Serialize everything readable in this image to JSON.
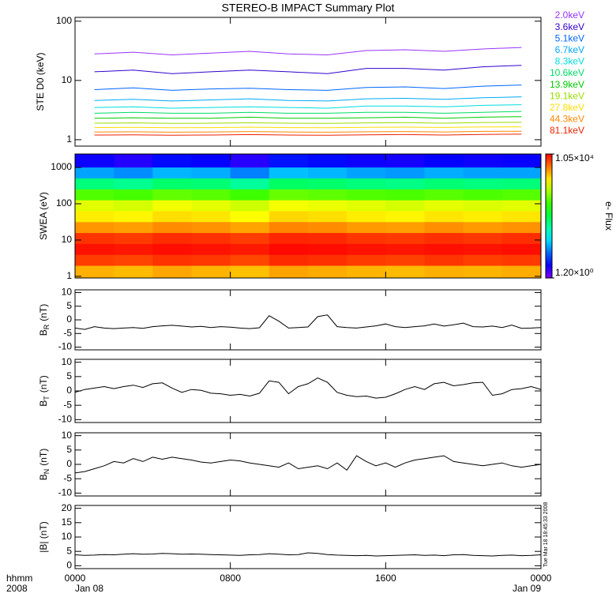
{
  "chart_data": [
    {
      "type": "line",
      "title": "STEREO-B IMPACT Summary Plot",
      "ylabel": "STE D0 (keV)",
      "log": true,
      "xlim": [
        0,
        24
      ],
      "xticks": [
        0,
        8,
        16,
        24
      ],
      "ylim": [
        0.78,
        116
      ],
      "yticks": [
        1,
        10,
        100
      ],
      "x": [
        1,
        3,
        5,
        7,
        9,
        11,
        13,
        15,
        17,
        19,
        21,
        23
      ],
      "series": [
        {
          "name": "2.0keV",
          "color": "#9933ff",
          "values": [
            28,
            30,
            27,
            29,
            31,
            28,
            27,
            32,
            33,
            31,
            34,
            36
          ]
        },
        {
          "name": "3.6keV",
          "color": "#3300cc",
          "values": [
            14,
            15,
            13,
            14,
            15,
            14,
            13,
            16,
            16,
            15,
            17,
            18
          ]
        },
        {
          "name": "5.1keV",
          "color": "#0066ff",
          "values": [
            7,
            7.5,
            6.8,
            7.2,
            7.4,
            7,
            6.8,
            7.6,
            7.8,
            7.3,
            8,
            8.4
          ]
        },
        {
          "name": "6.7keV",
          "color": "#00aaff",
          "values": [
            4.6,
            4.8,
            4.5,
            4.7,
            4.9,
            4.6,
            4.5,
            4.9,
            5,
            4.8,
            5.1,
            5.3
          ]
        },
        {
          "name": "8.3keV",
          "color": "#00dddd",
          "values": [
            3.5,
            3.6,
            3.4,
            3.5,
            3.6,
            3.5,
            3.4,
            3.7,
            3.7,
            3.6,
            3.8,
            3.9
          ]
        },
        {
          "name": "10.6keV",
          "color": "#00dd66",
          "values": [
            2.8,
            2.9,
            2.8,
            2.8,
            2.9,
            2.8,
            2.8,
            2.9,
            2.9,
            2.8,
            2.9,
            3
          ]
        },
        {
          "name": "13.9keV",
          "color": "#00cc00",
          "values": [
            2.3,
            2.35,
            2.3,
            2.3,
            2.4,
            2.3,
            2.3,
            2.35,
            2.4,
            2.3,
            2.4,
            2.45
          ]
        },
        {
          "name": "19.1keV",
          "color": "#99dd00",
          "values": [
            1.9,
            1.92,
            1.88,
            1.9,
            1.93,
            1.9,
            1.88,
            1.92,
            1.94,
            1.9,
            1.95,
            1.97
          ]
        },
        {
          "name": "27.8keV",
          "color": "#ffdd00",
          "values": [
            1.6,
            1.62,
            1.59,
            1.6,
            1.63,
            1.6,
            1.59,
            1.62,
            1.63,
            1.61,
            1.64,
            1.65
          ]
        },
        {
          "name": "44.3keV",
          "color": "#ff8800",
          "values": [
            1.35,
            1.36,
            1.34,
            1.35,
            1.37,
            1.35,
            1.34,
            1.36,
            1.37,
            1.35,
            1.38,
            1.39
          ]
        },
        {
          "name": "81.1keV",
          "color": "#ee2200",
          "values": [
            1.2,
            1.21,
            1.19,
            1.2,
            1.22,
            1.2,
            1.19,
            1.21,
            1.22,
            1.2,
            1.23,
            1.24
          ]
        }
      ]
    },
    {
      "type": "heatmap",
      "ylabel": "SWEA (eV)",
      "log": true,
      "xlim": [
        0,
        24
      ],
      "xticks": [
        0,
        8,
        16,
        24
      ],
      "ylim": [
        0.9,
        2350
      ],
      "yticks": [
        1,
        10,
        100,
        1000
      ],
      "x": [
        0,
        2,
        4,
        6,
        8,
        10,
        12,
        14,
        16,
        18,
        20,
        22,
        24
      ],
      "ybins": [
        0.9,
        2,
        4,
        8,
        16,
        32,
        64,
        128,
        256,
        512,
        1024,
        2350
      ],
      "z": [
        [
          2600,
          2400,
          2800,
          2500,
          2300,
          2900,
          2700,
          2500,
          2400,
          2600,
          2500,
          2700
        ],
        [
          6500,
          6200,
          7000,
          6800,
          6000,
          7500,
          7200,
          6600,
          6300,
          6900,
          6400,
          6700
        ],
        [
          9200,
          8800,
          9500,
          9000,
          8600,
          9800,
          9600,
          9100,
          8900,
          9300,
          9000,
          9400
        ],
        [
          7000,
          6600,
          7400,
          7100,
          6500,
          7800,
          7600,
          6900,
          6700,
          7200,
          6800,
          7300
        ],
        [
          3200,
          3000,
          3500,
          3300,
          2900,
          3700,
          3500,
          3100,
          3000,
          3400,
          3100,
          3300
        ],
        [
          1600,
          1500,
          1800,
          1700,
          1400,
          1900,
          1800,
          1600,
          1500,
          1700,
          1600,
          1700
        ],
        [
          1100,
          1000,
          1250,
          1150,
          950,
          1300,
          1200,
          1100,
          1000,
          1150,
          1050,
          1100
        ],
        [
          350,
          320,
          400,
          370,
          300,
          420,
          390,
          350,
          330,
          370,
          340,
          360
        ],
        [
          70,
          60,
          80,
          75,
          55,
          85,
          80,
          70,
          65,
          75,
          68,
          72
        ],
        [
          12,
          10,
          14,
          13,
          9,
          15,
          14,
          12,
          11,
          13,
          12,
          12
        ],
        [
          3,
          2.5,
          3.5,
          3.2,
          2.4,
          3.8,
          3.5,
          3,
          2.8,
          3.2,
          3,
          3.1
        ]
      ],
      "zlim": [
        1.2,
        10500
      ],
      "zticks": [
        {
          "value": 1.2,
          "label": "1.20×10⁰"
        },
        {
          "value": 10500,
          "label": "1.05×10⁴"
        }
      ],
      "zlabel": "e- Flux"
    },
    {
      "type": "line",
      "ylabel": "B",
      "ylabel_sub": "R",
      "ylabel_unit": "(nT)",
      "log": false,
      "xlim": [
        0,
        24
      ],
      "xticks": [
        0,
        8,
        16,
        24
      ],
      "ylim": [
        -11,
        11
      ],
      "yticks": [
        -10,
        -5,
        0,
        5,
        10
      ],
      "x": [
        0,
        0.5,
        1,
        1.5,
        2,
        2.5,
        3,
        3.5,
        4,
        4.5,
        5,
        5.5,
        6,
        6.5,
        7,
        7.5,
        8,
        8.5,
        9,
        9.5,
        10,
        10.5,
        11,
        11.5,
        12,
        12.5,
        13,
        13.5,
        14,
        14.5,
        15,
        15.5,
        16,
        16.5,
        17,
        17.5,
        18,
        18.5,
        19,
        19.5,
        20,
        20.5,
        21,
        21.5,
        22,
        22.5,
        23,
        23.5,
        24
      ],
      "series": [
        {
          "name": "B_R",
          "color": "#000000",
          "values": [
            -3,
            -3.5,
            -2.5,
            -3,
            -3.2,
            -3,
            -2.8,
            -3.1,
            -2.5,
            -2.2,
            -2,
            -2.3,
            -2.6,
            -2.4,
            -2.8,
            -2.5,
            -2.7,
            -3,
            -3.2,
            -2.9,
            1.5,
            -0.5,
            -3,
            -2.8,
            -2.6,
            1.2,
            1.8,
            -2.5,
            -2.8,
            -3,
            -2.6,
            -2.2,
            -1.5,
            -2.5,
            -2.8,
            -2.5,
            -2.2,
            -1.5,
            -2.3,
            -1.8,
            -1.2,
            -2.5,
            -2.6,
            -2.3,
            -2.8,
            -1.9,
            -3.1,
            -3,
            -2.8
          ]
        }
      ]
    },
    {
      "type": "line",
      "ylabel": "B",
      "ylabel_sub": "T",
      "ylabel_unit": "(nT)",
      "log": false,
      "xlim": [
        0,
        24
      ],
      "xticks": [
        0,
        8,
        16,
        24
      ],
      "ylim": [
        -11,
        11
      ],
      "yticks": [
        -10,
        -5,
        0,
        5,
        10
      ],
      "x": [
        0,
        0.5,
        1,
        1.5,
        2,
        2.5,
        3,
        3.5,
        4,
        4.5,
        5,
        5.5,
        6,
        6.5,
        7,
        7.5,
        8,
        8.5,
        9,
        9.5,
        10,
        10.5,
        11,
        11.5,
        12,
        12.5,
        13,
        13.5,
        14,
        14.5,
        15,
        15.5,
        16,
        16.5,
        17,
        17.5,
        18,
        18.5,
        19,
        19.5,
        20,
        20.5,
        21,
        21.5,
        22,
        22.5,
        23,
        23.5,
        24
      ],
      "series": [
        {
          "name": "B_T",
          "color": "#000000",
          "values": [
            -0.5,
            0.5,
            1,
            1.5,
            0.8,
            1.5,
            2,
            1.2,
            2.5,
            2.8,
            1,
            -0.5,
            0.5,
            0.2,
            -0.8,
            -1,
            -1.5,
            -1.2,
            -1.8,
            -0.8,
            3.5,
            3,
            -1,
            1.5,
            2.5,
            4.5,
            3,
            -0.5,
            -1.5,
            -2,
            -1.8,
            -2.5,
            -2.2,
            -1,
            0.5,
            1.5,
            0.5,
            2.5,
            3,
            1.8,
            2.2,
            2.8,
            3,
            -1.5,
            -1,
            0.5,
            0.8,
            1.5,
            0.5
          ]
        }
      ]
    },
    {
      "type": "line",
      "ylabel": "B",
      "ylabel_sub": "N",
      "ylabel_unit": "(nT)",
      "log": false,
      "xlim": [
        0,
        24
      ],
      "xticks": [
        0,
        8,
        16,
        24
      ],
      "ylim": [
        -11,
        11
      ],
      "yticks": [
        -10,
        -5,
        0,
        5,
        10
      ],
      "x": [
        0,
        0.5,
        1,
        1.5,
        2,
        2.5,
        3,
        3.5,
        4,
        4.5,
        5,
        5.5,
        6,
        6.5,
        7,
        7.5,
        8,
        8.5,
        9,
        9.5,
        10,
        10.5,
        11,
        11.5,
        12,
        12.5,
        13,
        13.5,
        14,
        14.5,
        15,
        15.5,
        16,
        16.5,
        17,
        17.5,
        18,
        18.5,
        19,
        19.5,
        20,
        20.5,
        21,
        21.5,
        22,
        22.5,
        23,
        23.5,
        24
      ],
      "series": [
        {
          "name": "B_N",
          "color": "#000000",
          "values": [
            -3,
            -2.5,
            -1.5,
            -0.5,
            1,
            0.5,
            2,
            1,
            2.5,
            1.8,
            2.5,
            2,
            1.5,
            0.8,
            0.5,
            1,
            1.5,
            1.2,
            0.5,
            0,
            -0.5,
            -1,
            0.5,
            -1.5,
            -1,
            -0.5,
            -1.5,
            0.5,
            -2,
            3,
            1,
            -0.5,
            0.5,
            -1,
            0.5,
            1.5,
            2,
            2.5,
            3,
            1,
            0.5,
            0,
            -0.5,
            0,
            0.5,
            -0.5,
            -1,
            -0.5,
            0
          ]
        }
      ]
    },
    {
      "type": "line",
      "ylabel": "|B| (nT)",
      "log": false,
      "xlim": [
        0,
        24
      ],
      "ylim": [
        -1,
        21
      ],
      "yticks": [
        0,
        5,
        10,
        15,
        20
      ],
      "xticks": [
        {
          "value": 0,
          "label": "0000"
        },
        {
          "value": 8,
          "label": "0800"
        },
        {
          "value": 16,
          "label": "1600"
        },
        {
          "value": 24,
          "label": "0000"
        }
      ],
      "date_labels": [
        {
          "value": 0,
          "label": "Jan 08"
        },
        {
          "value": 24,
          "label": "Jan 09"
        }
      ],
      "xlabel": "hhmm",
      "xlabel2": "2008",
      "annotation": "Tue Mar 18 18:45:33 2008",
      "x": [
        0,
        0.5,
        1,
        1.5,
        2,
        2.5,
        3,
        3.5,
        4,
        4.5,
        5,
        5.5,
        6,
        6.5,
        7,
        7.5,
        8,
        8.5,
        9,
        9.5,
        10,
        10.5,
        11,
        11.5,
        12,
        12.5,
        13,
        13.5,
        14,
        14.5,
        15,
        15.5,
        16,
        16.5,
        17,
        17.5,
        18,
        18.5,
        19,
        19.5,
        20,
        20.5,
        21,
        21.5,
        22,
        22.5,
        23,
        23.5,
        24
      ],
      "series": [
        {
          "name": "|B|",
          "color": "#000000",
          "values": [
            3.8,
            3.6,
            3.7,
            3.9,
            3.8,
            4,
            4.2,
            4,
            4.1,
            4.3,
            4.2,
            4,
            4.1,
            4,
            3.9,
            3.8,
            3.7,
            3.6,
            3.8,
            3.9,
            4.2,
            4,
            3.8,
            3.9,
            4.5,
            4.3,
            3.9,
            3.7,
            3.6,
            3.5,
            3.6,
            3.4,
            3.5,
            3.6,
            3.7,
            3.8,
            3.6,
            3.7,
            3.5,
            3.8,
            3.9,
            3.6,
            3.5,
            3.4,
            3.6,
            3.7,
            3.5,
            3.6,
            3.8
          ]
        }
      ]
    }
  ]
}
